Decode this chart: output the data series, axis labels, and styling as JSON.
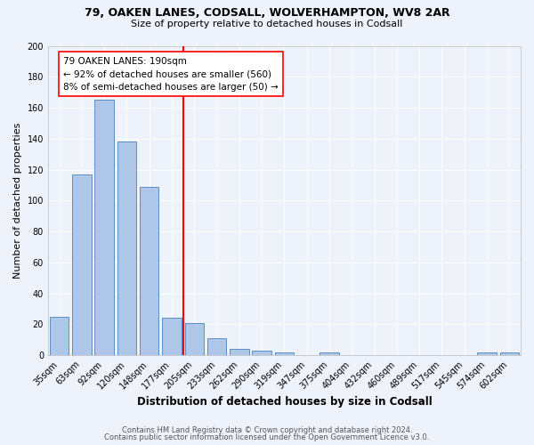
{
  "title1": "79, OAKEN LANES, CODSALL, WOLVERHAMPTON, WV8 2AR",
  "title2": "Size of property relative to detached houses in Codsall",
  "xlabel": "Distribution of detached houses by size in Codsall",
  "ylabel": "Number of detached properties",
  "footnote1": "Contains HM Land Registry data © Crown copyright and database right 2024.",
  "footnote2": "Contains public sector information licensed under the Open Government Licence v3.0.",
  "categories": [
    "35sqm",
    "63sqm",
    "92sqm",
    "120sqm",
    "148sqm",
    "177sqm",
    "205sqm",
    "233sqm",
    "262sqm",
    "290sqm",
    "319sqm",
    "347sqm",
    "375sqm",
    "404sqm",
    "432sqm",
    "460sqm",
    "489sqm",
    "517sqm",
    "545sqm",
    "574sqm",
    "602sqm"
  ],
  "values": [
    25,
    117,
    165,
    138,
    109,
    24,
    21,
    11,
    4,
    3,
    2,
    0,
    2,
    0,
    0,
    0,
    0,
    0,
    0,
    2,
    2
  ],
  "bar_color": "#aec6e8",
  "bar_edge_color": "#5b8ec4",
  "vline_x_index": 5.5,
  "vline_color": "red",
  "annotation_text": "79 OAKEN LANES: 190sqm\n← 92% of detached houses are smaller (560)\n8% of semi-detached houses are larger (50) →",
  "annotation_box_color": "white",
  "annotation_box_edge_color": "red",
  "background_color": "#eef2fb",
  "grid_color": "white",
  "ylim": [
    0,
    200
  ],
  "yticks": [
    0,
    20,
    40,
    60,
    80,
    100,
    120,
    140,
    160,
    180,
    200
  ]
}
